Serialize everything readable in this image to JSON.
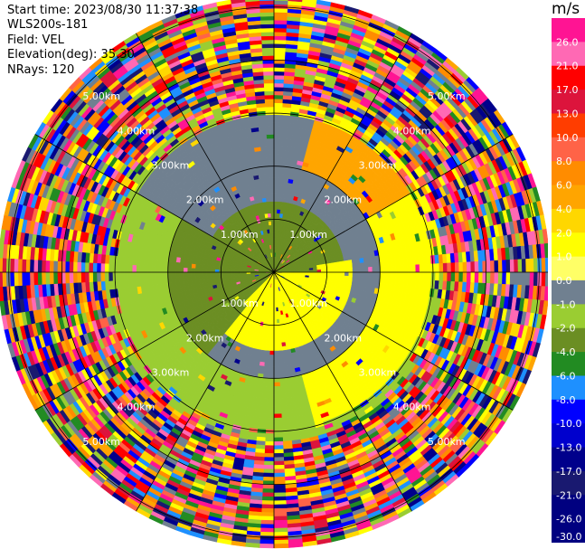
{
  "header": {
    "start_time": "Start time: 2023/08/30 11:37:38",
    "instrument": "WLS200s-181",
    "field": "Field: VEL",
    "elevation": "Elevation(deg): 35.30",
    "nrays": "NRays: 120"
  },
  "chart_data": {
    "type": "heatmap",
    "projection": "polar (PPI)",
    "field": "VEL",
    "units": "m/s",
    "elevation_deg": 35.3,
    "n_rays": 120,
    "range_rings_km": [
      1,
      2,
      3,
      4,
      5
    ],
    "range_labels": [
      "1.00km",
      "2.00km",
      "3.00km",
      "4.00km",
      "5.00km"
    ],
    "range_max_km": 5.2,
    "spoke_azimuths_deg": [
      0,
      30,
      60,
      90,
      120,
      150,
      180,
      210,
      240,
      270,
      300,
      330
    ],
    "colorbar": {
      "title": "m/s",
      "ticks": [
        "26.0",
        "21.0",
        "17.0",
        "13.0",
        "10.0",
        "8.0",
        "6.0",
        "4.0",
        "2.0",
        "1.0",
        "0.0",
        "-1.0",
        "-2.0",
        "-4.0",
        "-6.0",
        "-8.0",
        "-10.0",
        "-13.0",
        "-17.0",
        "-21.0",
        "-26.0",
        "-30.0"
      ],
      "colors": [
        "#ff1493",
        "#ff69b4",
        "#ff0000",
        "#dc143c",
        "#ff3d00",
        "#ff6347",
        "#ff8c00",
        "#ffa500",
        "#ffd700",
        "#ffff00",
        "#ffff66",
        "#708090",
        "#9acd32",
        "#6b8e23",
        "#228b22",
        "#1e90ff",
        "#0000ff",
        "#0000cd",
        "#00008b",
        "#191970",
        "#000080"
      ]
    }
  }
}
